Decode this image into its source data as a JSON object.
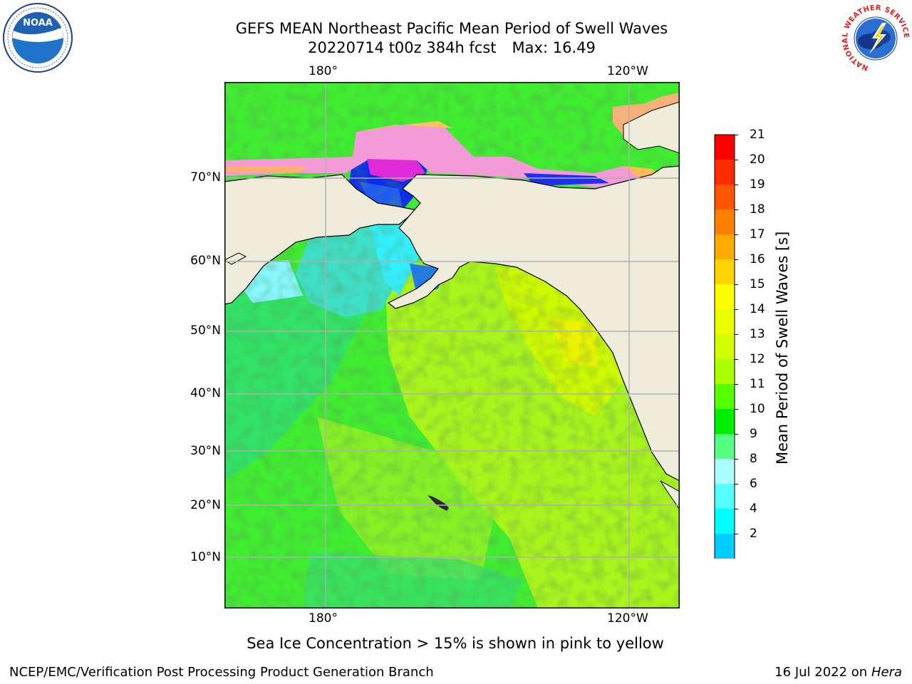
{
  "header": {
    "title_line1": "GEFS MEAN Northeast Pacific Mean Period of Swell Waves",
    "title_date": "20220714 t00z 384h fcst",
    "title_max": "Max: 16.49"
  },
  "logos": {
    "left": {
      "name": "noaa-logo",
      "text": "NOAA"
    },
    "right": {
      "name": "national-weather-service-logo",
      "ring_text": "NATIONAL WEATHER SERVICE"
    }
  },
  "map": {
    "top_lon_labels": [
      "180°",
      "120°W"
    ],
    "bottom_lon_labels": [
      "180°",
      "120°W"
    ],
    "lat_labels": [
      "70°N",
      "60°N",
      "50°N",
      "40°N",
      "30°N",
      "20°N",
      "10°N"
    ],
    "land_color": "#efecdc",
    "grid_color": "#b0b0b0"
  },
  "colorbar": {
    "label": "Mean Period of Swell Waves [s]",
    "ticks": [
      "21",
      "20",
      "19",
      "18",
      "17",
      "16",
      "15",
      "14",
      "13",
      "12",
      "11",
      "10",
      "9",
      "8",
      "6",
      "4",
      "2"
    ],
    "colors": [
      "#ff0000",
      "#ff2a00",
      "#ff5500",
      "#ff7f00",
      "#ffaa00",
      "#ffd400",
      "#ffff00",
      "#eaff00",
      "#d4ff00",
      "#aaff00",
      "#55ff00",
      "#00ee00",
      "#55ff80",
      "#aaffff",
      "#55ffff",
      "#00ffff",
      "#00ccff",
      "#0066ff"
    ],
    "extend_color": "#0000ff"
  },
  "caption": "Sea Ice Concentration > 15% is shown in pink to yellow",
  "footer": {
    "left": "NCEP/EMC/Verification Post Processing Product Generation Branch",
    "right_date": "16 Jul 2022 on",
    "right_host": "Hera"
  }
}
